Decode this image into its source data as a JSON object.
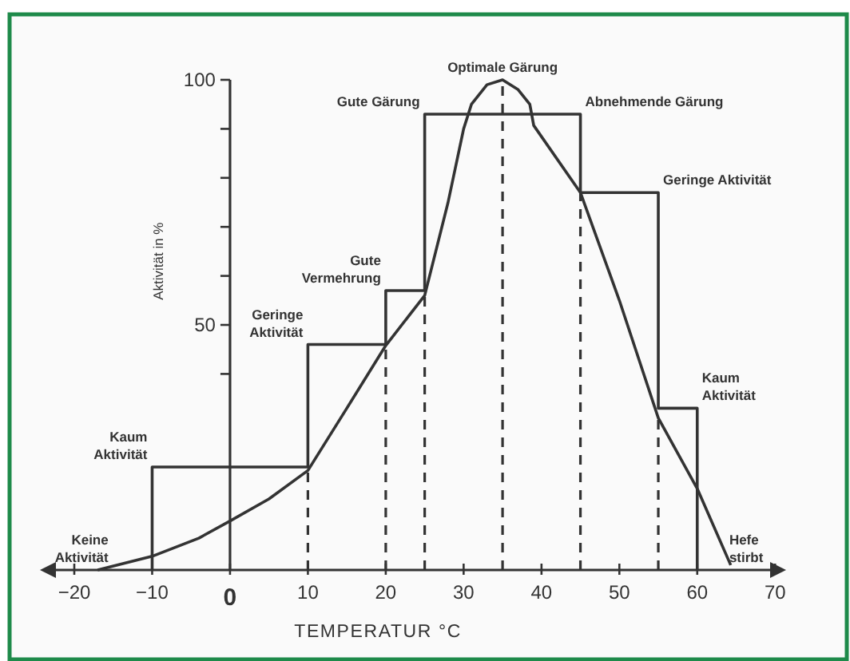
{
  "chart_data": {
    "type": "line",
    "xlabel": "TEMPERATUR °C",
    "ylabel": "Aktivität in %",
    "xlim": [
      -24,
      71
    ],
    "ylim": [
      0,
      100
    ],
    "xticks": [
      {
        "value": -20,
        "label": "−20"
      },
      {
        "value": -10,
        "label": "−10"
      },
      0,
      10,
      20,
      30,
      40,
      50,
      60,
      70
    ],
    "yticks": [
      {
        "value": 40,
        "label": null
      },
      50,
      {
        "value": 60,
        "label": null
      },
      {
        "value": 70,
        "label": null
      },
      {
        "value": 80,
        "label": null
      },
      {
        "value": 90,
        "label": null
      },
      100
    ],
    "grid": false,
    "marker": "none",
    "series": [
      {
        "type": "step",
        "color": "#333333",
        "x": [
          -10,
          -10,
          10,
          20,
          25,
          45,
          55,
          60
        ],
        "values": [
          0,
          21,
          46,
          57,
          93,
          77,
          33,
          0
        ]
      },
      {
        "color": "#333333",
        "x": [
          -17,
          -10,
          -4,
          0,
          5,
          10,
          15,
          20,
          25,
          28,
          30,
          31,
          33,
          35,
          37,
          38.5,
          39,
          45,
          50,
          55,
          60,
          64.3
        ],
        "values": [
          0,
          2.8,
          6.5,
          10,
          14.5,
          20.3,
          33,
          45.8,
          56,
          75,
          90,
          95,
          99,
          100,
          98,
          95,
          90.7,
          77,
          55,
          31,
          16.6,
          1
        ]
      }
    ],
    "ref_lines": [
      {
        "axis": "x",
        "value": 10,
        "line_style": "dashed"
      },
      {
        "axis": "x",
        "value": 20,
        "line_style": "dashed"
      },
      {
        "axis": "x",
        "value": 25,
        "line_style": "dashed"
      },
      {
        "axis": "x",
        "value": 35,
        "line_style": "dashed"
      },
      {
        "axis": "x",
        "value": 45,
        "line_style": "dashed"
      },
      {
        "axis": "x",
        "value": 55,
        "line_style": "dashed"
      }
    ],
    "annotations": [
      {
        "text": "Keine\nAktivität",
        "x": -15,
        "y": 0
      },
      {
        "text": "Kaum\nAktivität",
        "x": -10,
        "y": 21
      },
      {
        "text": "Geringe\nAktivität",
        "x": 10,
        "y": 46
      },
      {
        "text": "Gute\nVermehrung",
        "x": 20,
        "y": 57
      },
      {
        "text": "Gute Gärung",
        "x": 25,
        "y": 93
      },
      {
        "text": "Optimale Gärung",
        "x": 35,
        "y": 100
      },
      {
        "text": "Abnehmende Gärung",
        "x": 45,
        "y": 93
      },
      {
        "text": "Geringe Aktivität",
        "x": 55,
        "y": 77
      },
      {
        "text": "Kaum\nAktivität",
        "x": 60,
        "y": 33
      },
      {
        "text": "Hefe\nstirbt",
        "x": 63.5,
        "y": 0
      }
    ]
  }
}
